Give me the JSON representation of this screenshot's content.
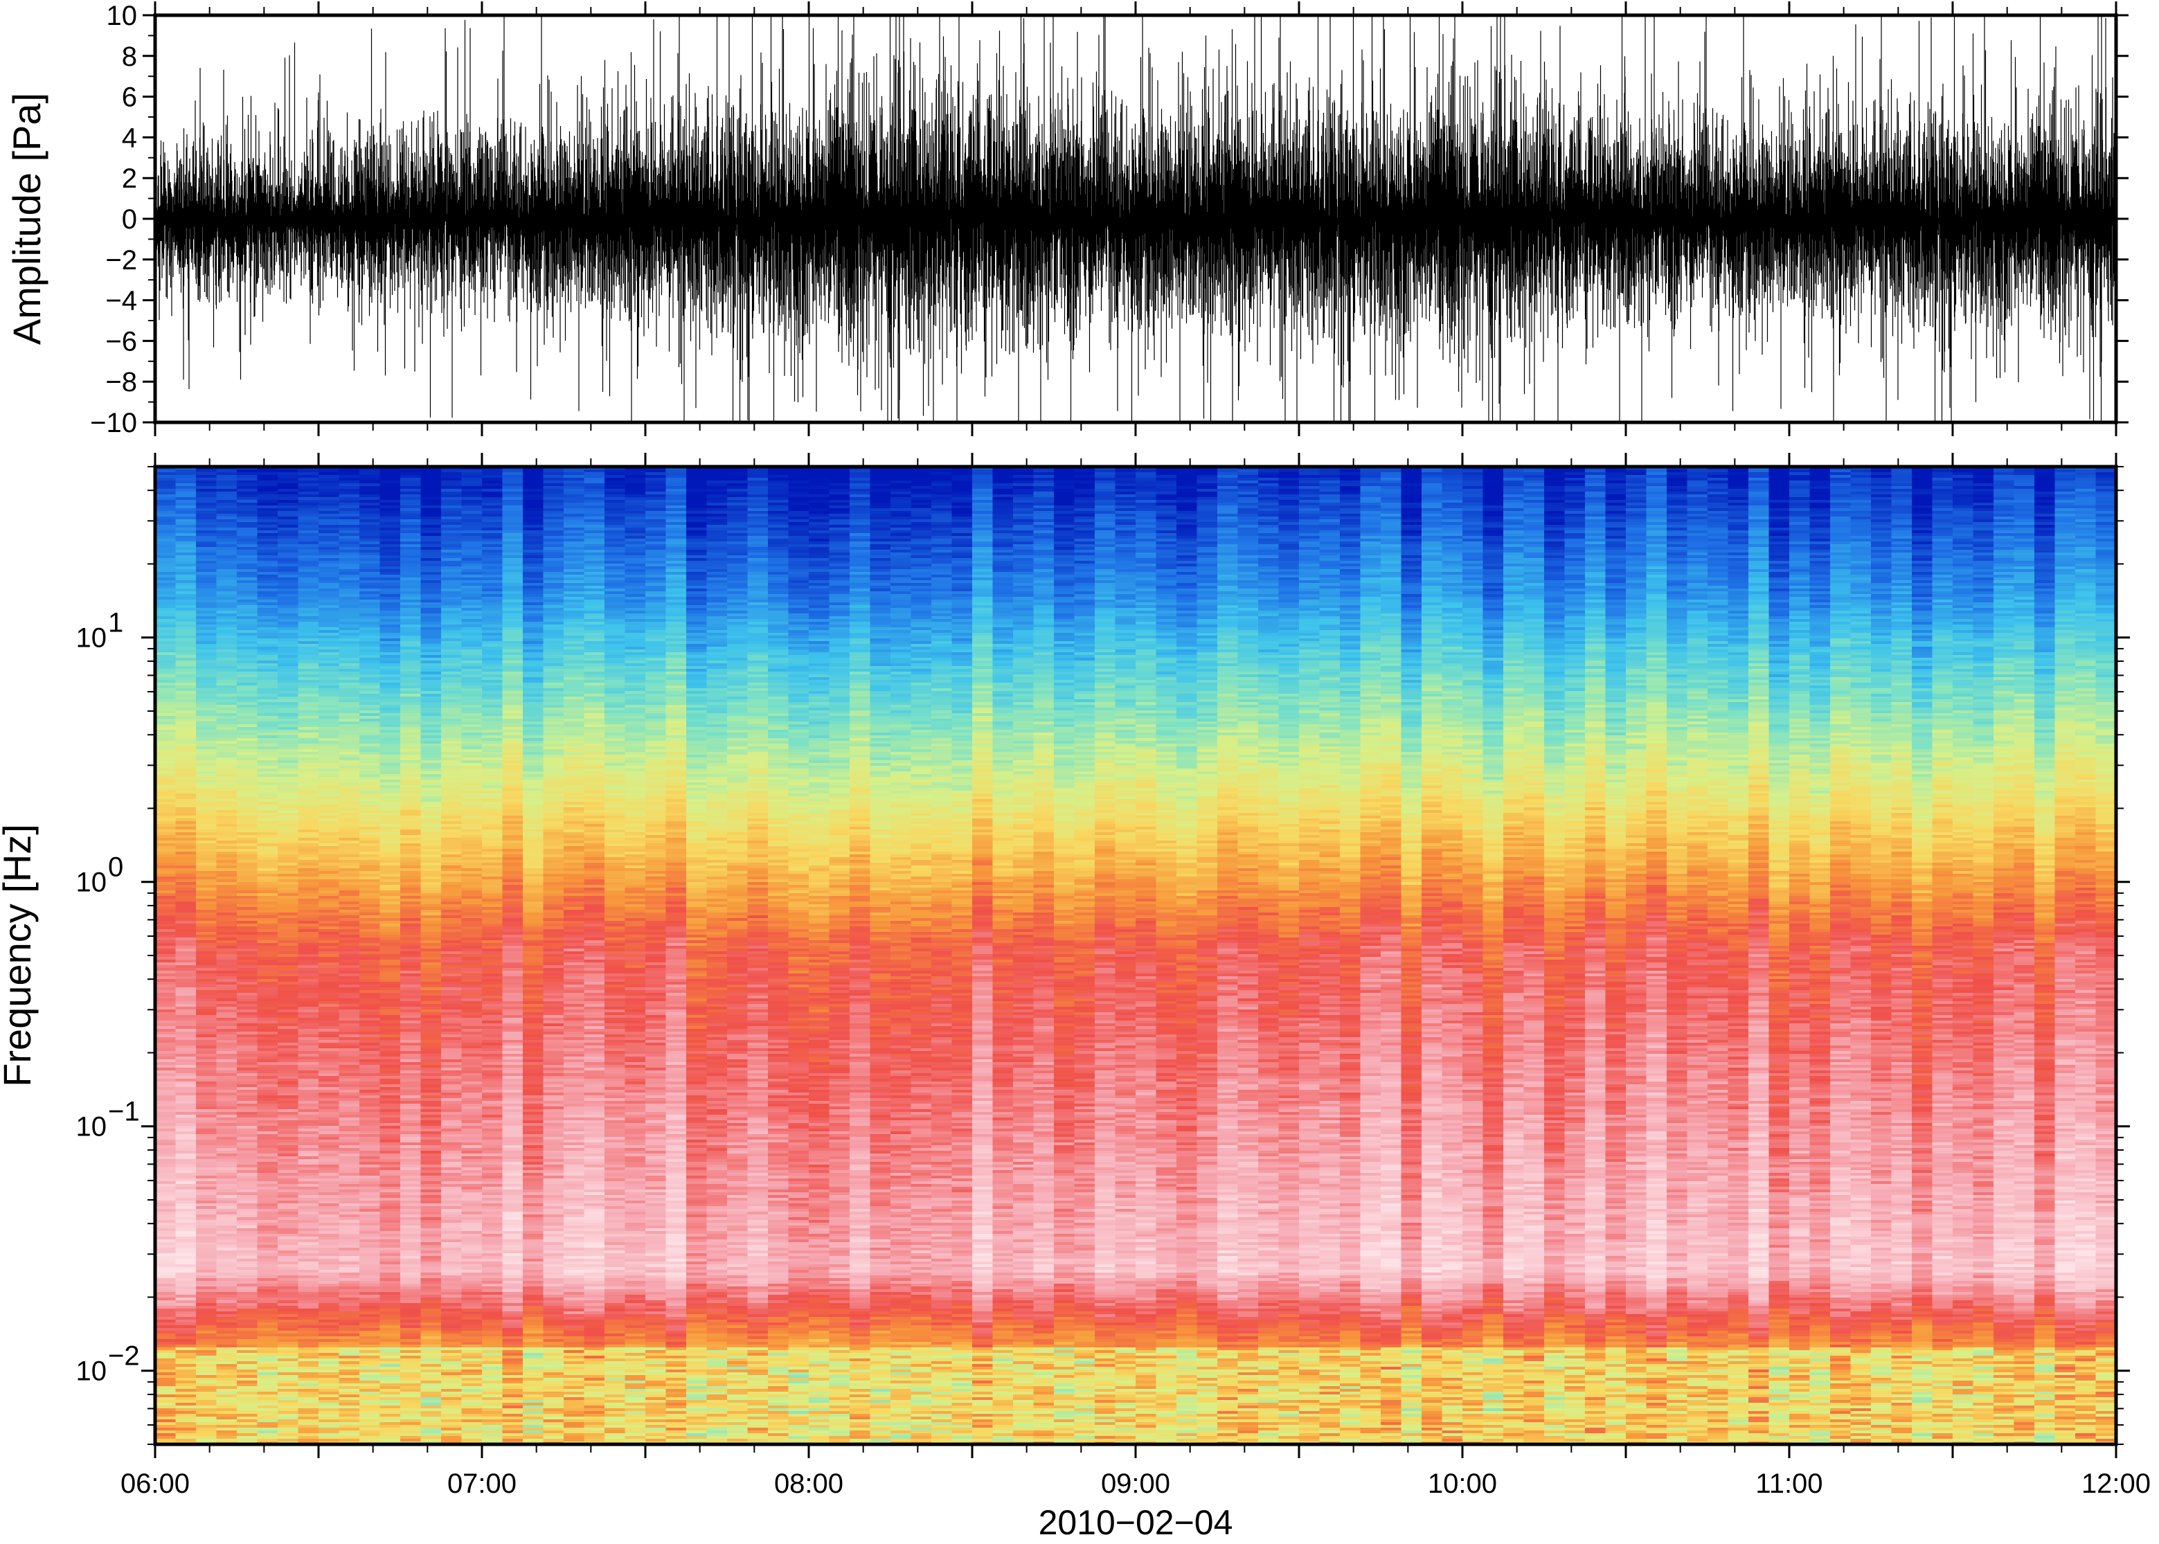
{
  "chart_data": [
    {
      "type": "line",
      "panel": "waveform",
      "ylabel": "Amplitude [Pa]",
      "xlabel": "",
      "ylim": [
        -10,
        10
      ],
      "yticks": [
        10,
        8,
        6,
        4,
        2,
        0,
        -2,
        -4,
        -6,
        -8,
        -10
      ],
      "ytick_labels": [
        "10",
        "8",
        "6",
        "4",
        "2",
        "0",
        "−2",
        "−4",
        "−6",
        "−8",
        "−10"
      ],
      "x_range": [
        "06:00",
        "12:00"
      ],
      "series": [
        {
          "color": "#000000",
          "envelope_x": [
            "06:00",
            "06:30",
            "07:00",
            "07:30",
            "08:00",
            "08:30",
            "09:00",
            "09:30",
            "10:00",
            "10:30",
            "11:00",
            "11:30",
            "12:00"
          ],
          "envelope_max": [
            4.5,
            5.0,
            5.5,
            6.5,
            8.0,
            8.5,
            7.0,
            7.5,
            8.0,
            6.5,
            6.0,
            7.0,
            6.5
          ]
        }
      ],
      "grid": false
    },
    {
      "type": "heatmap",
      "panel": "spectrogram",
      "ylabel": "Frequency [Hz]",
      "xlabel": "2010−02−04",
      "y_scale": "log",
      "ylim": [
        0.005,
        50
      ],
      "yticks": [
        10,
        1,
        0.1,
        0.01
      ],
      "ytick_labels": [
        {
          "base": "10",
          "exp": "1"
        },
        {
          "base": "10",
          "exp": "0"
        },
        {
          "base": "10",
          "exp": "−1"
        },
        {
          "base": "10",
          "exp": "−2"
        }
      ],
      "xticks": [
        "06:00",
        "07:00",
        "08:00",
        "09:00",
        "10:00",
        "11:00",
        "12:00"
      ],
      "colormap": "spectral (dark blue = low power, red/pink = high power)",
      "colormap_stops": [
        "#0018b8",
        "#1f73e6",
        "#3ec3ec",
        "#7fe2c4",
        "#d6f08a",
        "#f8d860",
        "#f7983c",
        "#f0504a",
        "#f6a8b2",
        "#fde2e6"
      ],
      "grid": false
    }
  ]
}
